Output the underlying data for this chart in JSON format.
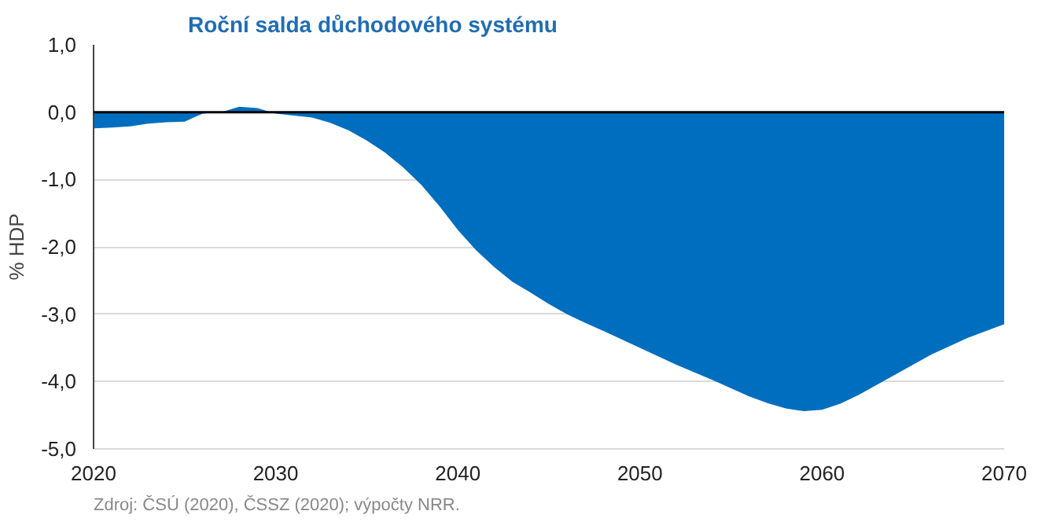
{
  "chart_data": {
    "type": "area",
    "title": "Roční salda důchodového systému",
    "ylabel": "% HDP",
    "x": [
      2020,
      2021,
      2022,
      2023,
      2024,
      2025,
      2025.5,
      2026,
      2027,
      2028,
      2029,
      2030,
      2031,
      2032,
      2033,
      2034,
      2035,
      2036,
      2037,
      2038,
      2039,
      2040,
      2041,
      2042,
      2043,
      2044,
      2045,
      2046,
      2047,
      2048,
      2050,
      2052,
      2054,
      2056,
      2057,
      2058,
      2059,
      2060,
      2061,
      2062,
      2064,
      2066,
      2068,
      2070
    ],
    "series": [
      {
        "color": "#006ebe",
        "values": [
          -0.24,
          -0.23,
          -0.21,
          -0.17,
          -0.15,
          -0.14,
          -0.08,
          -0.02,
          0.0,
          0.08,
          0.06,
          -0.02,
          -0.05,
          -0.08,
          -0.16,
          -0.27,
          -0.42,
          -0.6,
          -0.82,
          -1.08,
          -1.4,
          -1.75,
          -2.05,
          -2.3,
          -2.52,
          -2.68,
          -2.85,
          -3.0,
          -3.13,
          -3.25,
          -3.5,
          -3.75,
          -3.98,
          -4.22,
          -4.32,
          -4.4,
          -4.44,
          -4.42,
          -4.33,
          -4.2,
          -3.9,
          -3.6,
          -3.35,
          -3.15
        ]
      }
    ],
    "xlim": [
      2020,
      2070
    ],
    "xticks": [
      2020,
      2030,
      2040,
      2050,
      2060,
      2070
    ],
    "ylim": [
      -5,
      1
    ],
    "yticks": [
      {
        "value": 1,
        "label": "1,0"
      },
      {
        "value": 0,
        "label": "0,0"
      },
      {
        "value": -1,
        "label": "-1,0"
      },
      {
        "value": -2,
        "label": "-2,0"
      },
      {
        "value": -3,
        "label": "-3,0"
      },
      {
        "value": -4,
        "label": "-4,0"
      },
      {
        "value": -5,
        "label": "-5,0"
      }
    ],
    "grid": "y",
    "ref_lines": [
      {
        "axis": "y",
        "value": 0,
        "color": "#000000"
      }
    ],
    "annotations": [
      "Zdroj: ČSÚ (2020), ČSSZ (2020); výpočty NRR."
    ]
  }
}
